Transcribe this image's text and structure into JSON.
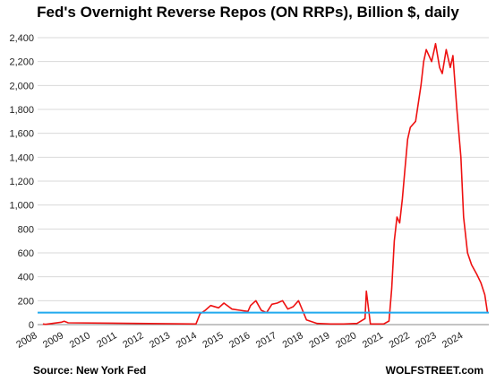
{
  "chart_data": {
    "type": "line",
    "title": "Fed's Overnight Reverse Repos (ON RRPs), Billion $, daily",
    "xlabel": "",
    "ylabel": "",
    "ylim": [
      0,
      2550
    ],
    "xlim": [
      2008.0,
      2024.95
    ],
    "y_ticks": [
      "0",
      "200",
      "400",
      "600",
      "800",
      "1,000",
      "1,200",
      "1,400",
      "1,600",
      "1,800",
      "2,000",
      "2,200",
      "2,400"
    ],
    "x_ticks": [
      "2008",
      "2009",
      "2010",
      "2011",
      "2012",
      "2013",
      "2014",
      "2015",
      "2016",
      "2017",
      "2018",
      "2019",
      "2020",
      "2021",
      "2022",
      "2023",
      "2024"
    ],
    "grid": "horizontal",
    "series": [
      {
        "color": "#ee1111",
        "x": [
          2008.2,
          2008.3,
          2008.9,
          2009.0,
          2009.15,
          2013.95,
          2014.1,
          2014.3,
          2014.5,
          2014.8,
          2015.0,
          2015.3,
          2015.6,
          2015.9,
          2016.0,
          2016.2,
          2016.4,
          2016.6,
          2016.8,
          2017.0,
          2017.2,
          2017.4,
          2017.6,
          2017.8,
          2017.95,
          2018.1,
          2018.5,
          2019.0,
          2019.5,
          2020.0,
          2020.3,
          2020.35,
          2020.5,
          2021.0,
          2021.2,
          2021.3,
          2021.4,
          2021.5,
          2021.6,
          2021.7,
          2021.8,
          2021.9,
          2022.0,
          2022.2,
          2022.4,
          2022.5,
          2022.6,
          2022.8,
          2022.95,
          2023.1,
          2023.2,
          2023.35,
          2023.5,
          2023.6,
          2023.75,
          2023.9,
          2024.0,
          2024.15,
          2024.3,
          2024.5,
          2024.65,
          2024.8,
          2024.9
        ],
        "values": [
          5,
          2,
          20,
          28,
          15,
          5,
          90,
          120,
          160,
          140,
          180,
          130,
          120,
          110,
          160,
          200,
          120,
          100,
          170,
          180,
          200,
          130,
          150,
          200,
          120,
          40,
          10,
          5,
          5,
          10,
          50,
          280,
          5,
          5,
          30,
          300,
          700,
          900,
          850,
          1050,
          1300,
          1550,
          1650,
          1700,
          2000,
          2200,
          2300,
          2200,
          2350,
          2150,
          2100,
          2300,
          2150,
          2250,
          1800,
          1400,
          900,
          600,
          500,
          420,
          350,
          250,
          100
        ]
      }
    ],
    "reference_line": {
      "value": 100,
      "color": "#22aaee"
    }
  },
  "footer": {
    "source": "Source: New York Fed",
    "site": "WOLFSTREET.com"
  }
}
